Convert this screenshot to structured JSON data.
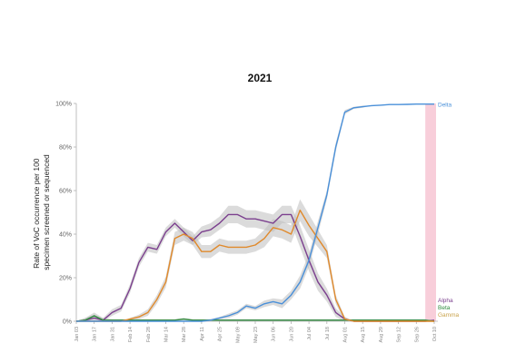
{
  "chart_data": {
    "type": "line",
    "title": "2021",
    "ylabel_lines": [
      "Rate of VoC occurrence per 100",
      "specimen screened or sequenced"
    ],
    "xlabel": "",
    "ylim": [
      0,
      100
    ],
    "yticks": [
      {
        "value": 0,
        "label": "0%"
      },
      {
        "value": 20,
        "label": "20%"
      },
      {
        "value": 40,
        "label": "40%"
      },
      {
        "value": 60,
        "label": "60%"
      },
      {
        "value": 80,
        "label": "80%"
      },
      {
        "value": 100,
        "label": "100%"
      }
    ],
    "x_dates": [
      "2021-01-03",
      "2021-01-10",
      "2021-01-17",
      "2021-01-24",
      "2021-01-31",
      "2021-02-07",
      "2021-02-14",
      "2021-02-21",
      "2021-02-28",
      "2021-03-07",
      "2021-03-14",
      "2021-03-21",
      "2021-03-28",
      "2021-04-04",
      "2021-04-11",
      "2021-04-18",
      "2021-04-25",
      "2021-05-02",
      "2021-05-09",
      "2021-05-16",
      "2021-05-23",
      "2021-05-30",
      "2021-06-06",
      "2021-06-13",
      "2021-06-20",
      "2021-06-27",
      "2021-07-04",
      "2021-07-11",
      "2021-07-18",
      "2021-07-25",
      "2021-08-01",
      "2021-08-08",
      "2021-08-15",
      "2021-08-22",
      "2021-08-29",
      "2021-09-05",
      "2021-09-12",
      "2021-09-19",
      "2021-09-26",
      "2021-10-03",
      "2021-10-10"
    ],
    "xticks": [
      {
        "date": "2021-01-03",
        "label": "Jan 03"
      },
      {
        "date": "2021-01-17",
        "label": "Jan 17"
      },
      {
        "date": "2021-01-31",
        "label": "Jan 31"
      },
      {
        "date": "2021-02-14",
        "label": "Feb 14"
      },
      {
        "date": "2021-02-28",
        "label": "Feb 28"
      },
      {
        "date": "2021-03-14",
        "label": "Mar 14"
      },
      {
        "date": "2021-03-28",
        "label": "Mar 28"
      },
      {
        "date": "2021-04-11",
        "label": "Apr 11"
      },
      {
        "date": "2021-04-25",
        "label": "Apr 25"
      },
      {
        "date": "2021-05-09",
        "label": "May 09"
      },
      {
        "date": "2021-05-23",
        "label": "May 23"
      },
      {
        "date": "2021-06-06",
        "label": "Jun 06"
      },
      {
        "date": "2021-06-20",
        "label": "Jun 20"
      },
      {
        "date": "2021-07-04",
        "label": "Jul 04"
      },
      {
        "date": "2021-07-18",
        "label": "Jul 18"
      },
      {
        "date": "2021-08-01",
        "label": "Aug 01"
      },
      {
        "date": "2021-08-15",
        "label": "Aug 15"
      },
      {
        "date": "2021-08-29",
        "label": "Aug 29"
      },
      {
        "date": "2021-09-12",
        "label": "Sep 12"
      },
      {
        "date": "2021-09-26",
        "label": "Sep 26"
      },
      {
        "date": "2021-10-10",
        "label": "Oct 10"
      }
    ],
    "highlight_band": {
      "from": "2021-10-03",
      "to": "2021-10-10",
      "color": "#f7c6d3"
    },
    "series": [
      {
        "name": "Alpha",
        "color": "#7b3f8e",
        "label_color": "#7b3f8e",
        "values": [
          0,
          0.5,
          1.5,
          0.5,
          4,
          6,
          15,
          27,
          34,
          33,
          41,
          45,
          41,
          37,
          41,
          42,
          45,
          49,
          49,
          47,
          47,
          46,
          45,
          49,
          49,
          39,
          28,
          18,
          12,
          4,
          1,
          0,
          0,
          0,
          0,
          0,
          0,
          0,
          0,
          0,
          0.5
        ],
        "band": [
          0,
          1,
          1.5,
          1,
          1.5,
          1.5,
          2,
          2,
          2,
          2,
          2,
          2,
          2,
          2,
          2.5,
          3,
          3,
          4,
          4,
          4,
          4,
          4,
          4,
          4,
          4,
          5,
          5,
          4,
          3,
          2,
          1,
          0,
          0,
          0,
          0,
          0,
          0,
          0,
          0,
          0,
          0
        ]
      },
      {
        "name": "Beta",
        "color": "#2e8b3e",
        "label_color": "#2e8b3e",
        "values": [
          0,
          0.5,
          2.5,
          0.5,
          0.5,
          0.5,
          0.5,
          0.5,
          0.5,
          0.5,
          0.5,
          0.5,
          1,
          0.5,
          0.5,
          0.5,
          0.5,
          0.5,
          0.5,
          0.5,
          0.5,
          0.5,
          0.5,
          0.5,
          0.5,
          0.5,
          0.5,
          0.5,
          0.5,
          0.5,
          0.5,
          0.5,
          0.5,
          0.5,
          0.5,
          0.5,
          0.5,
          0.5,
          0.5,
          0.5,
          0
        ],
        "band": [
          0,
          1,
          1.5,
          1,
          0.5,
          0.5,
          0.5,
          0.5,
          0.5,
          0.5,
          0.5,
          0.5,
          0.5,
          0.5,
          0.5,
          0.5,
          0.5,
          0.5,
          0.5,
          0.5,
          0.5,
          0.5,
          0.5,
          0.5,
          0.5,
          0.5,
          0.5,
          0.5,
          0.5,
          0.5,
          0.5,
          0.5,
          0.5,
          0.5,
          0.5,
          0.5,
          0.5,
          0.5,
          0.5,
          0.5,
          0
        ]
      },
      {
        "name": "Gamma",
        "color": "#e08a2c",
        "label_color": "#c9a24a",
        "values": [
          0,
          0,
          0,
          0,
          0,
          0,
          1,
          2,
          4,
          10,
          18,
          38,
          40,
          38,
          32,
          32,
          35,
          34,
          34,
          34,
          35,
          38,
          43,
          42,
          40,
          51,
          44,
          38,
          32,
          10,
          1,
          0,
          0,
          0,
          0,
          0,
          0,
          0,
          0,
          0,
          0
        ],
        "band": [
          0,
          0,
          0,
          0,
          0,
          0,
          0.5,
          1,
          1.5,
          2,
          2.5,
          3,
          3,
          3,
          3,
          3,
          3,
          3,
          3,
          3,
          3,
          4,
          4,
          4,
          4,
          5,
          5,
          4,
          3,
          2,
          1,
          0,
          0,
          0,
          0,
          0,
          0,
          0,
          0,
          0,
          0
        ]
      },
      {
        "name": "Delta",
        "color": "#4a90d9",
        "label_color": "#4a90d9",
        "values": [
          0,
          0,
          0,
          0,
          0,
          0,
          0,
          0,
          0,
          0,
          0,
          0,
          0,
          0,
          0,
          0.5,
          1.5,
          2.5,
          4,
          7,
          6,
          8,
          9,
          8,
          12,
          18,
          28,
          43,
          58,
          80,
          96,
          98,
          98.5,
          99,
          99.2,
          99.5,
          99.5,
          99.6,
          99.7,
          99.7,
          99.7
        ],
        "band": [
          0,
          0,
          0,
          0,
          0,
          0,
          0,
          0,
          0,
          0,
          0,
          0,
          0,
          0,
          0,
          0.5,
          0.5,
          1,
          1,
          1,
          1,
          1.5,
          1.5,
          2,
          2,
          3,
          3,
          3,
          2,
          2,
          1,
          0.5,
          0.5,
          0,
          0,
          0,
          0,
          0,
          0,
          0,
          0
        ]
      }
    ]
  }
}
